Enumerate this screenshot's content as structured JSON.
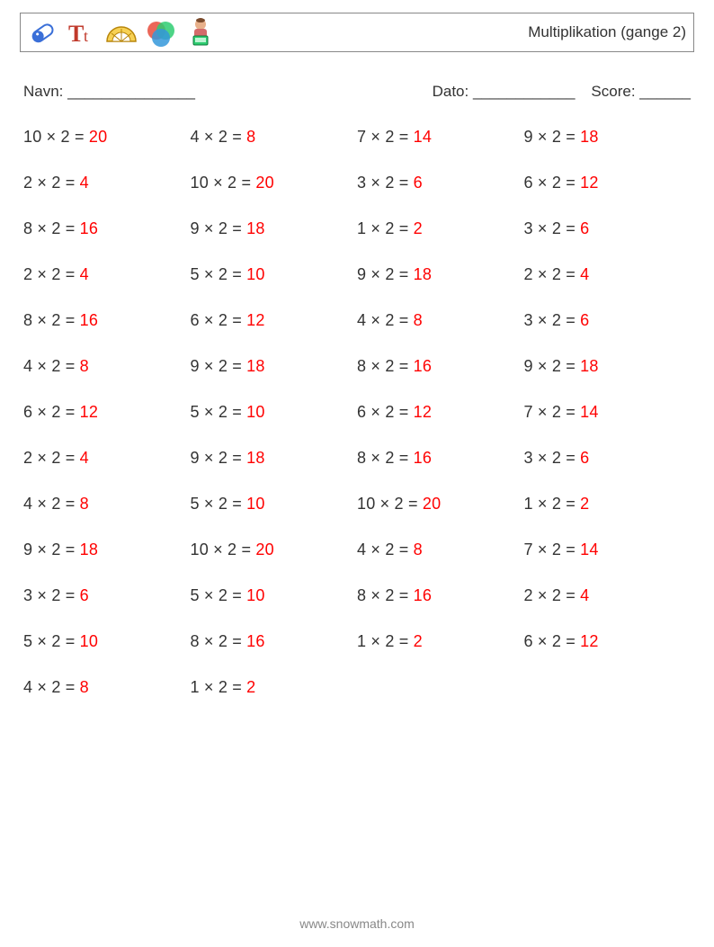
{
  "header": {
    "title": "Multiplikation (gange 2)",
    "icons": [
      "pill-icon",
      "text-tool-icon",
      "protractor-icon",
      "color-wheel-icon",
      "person-laptop-icon"
    ]
  },
  "meta": {
    "name_label": "Navn: _______________",
    "date_label": "Dato: ____________",
    "score_label": "Score: ______"
  },
  "styling": {
    "page_bg": "#ffffff",
    "text_color": "#333333",
    "answer_color": "#ff0000",
    "border_color": "#888888",
    "font_size_body": 18,
    "font_size_title": 17,
    "columns": 4,
    "rows": 13
  },
  "problems": [
    {
      "a": 10,
      "b": 2,
      "r": 20
    },
    {
      "a": 4,
      "b": 2,
      "r": 8
    },
    {
      "a": 7,
      "b": 2,
      "r": 14
    },
    {
      "a": 9,
      "b": 2,
      "r": 18
    },
    {
      "a": 2,
      "b": 2,
      "r": 4
    },
    {
      "a": 10,
      "b": 2,
      "r": 20
    },
    {
      "a": 3,
      "b": 2,
      "r": 6
    },
    {
      "a": 6,
      "b": 2,
      "r": 12
    },
    {
      "a": 8,
      "b": 2,
      "r": 16
    },
    {
      "a": 9,
      "b": 2,
      "r": 18
    },
    {
      "a": 1,
      "b": 2,
      "r": 2
    },
    {
      "a": 3,
      "b": 2,
      "r": 6
    },
    {
      "a": 2,
      "b": 2,
      "r": 4
    },
    {
      "a": 5,
      "b": 2,
      "r": 10
    },
    {
      "a": 9,
      "b": 2,
      "r": 18
    },
    {
      "a": 2,
      "b": 2,
      "r": 4
    },
    {
      "a": 8,
      "b": 2,
      "r": 16
    },
    {
      "a": 6,
      "b": 2,
      "r": 12
    },
    {
      "a": 4,
      "b": 2,
      "r": 8
    },
    {
      "a": 3,
      "b": 2,
      "r": 6
    },
    {
      "a": 4,
      "b": 2,
      "r": 8
    },
    {
      "a": 9,
      "b": 2,
      "r": 18
    },
    {
      "a": 8,
      "b": 2,
      "r": 16
    },
    {
      "a": 9,
      "b": 2,
      "r": 18
    },
    {
      "a": 6,
      "b": 2,
      "r": 12
    },
    {
      "a": 5,
      "b": 2,
      "r": 10
    },
    {
      "a": 6,
      "b": 2,
      "r": 12
    },
    {
      "a": 7,
      "b": 2,
      "r": 14
    },
    {
      "a": 2,
      "b": 2,
      "r": 4
    },
    {
      "a": 9,
      "b": 2,
      "r": 18
    },
    {
      "a": 8,
      "b": 2,
      "r": 16
    },
    {
      "a": 3,
      "b": 2,
      "r": 6
    },
    {
      "a": 4,
      "b": 2,
      "r": 8
    },
    {
      "a": 5,
      "b": 2,
      "r": 10
    },
    {
      "a": 10,
      "b": 2,
      "r": 20
    },
    {
      "a": 1,
      "b": 2,
      "r": 2
    },
    {
      "a": 9,
      "b": 2,
      "r": 18
    },
    {
      "a": 10,
      "b": 2,
      "r": 20
    },
    {
      "a": 4,
      "b": 2,
      "r": 8
    },
    {
      "a": 7,
      "b": 2,
      "r": 14
    },
    {
      "a": 3,
      "b": 2,
      "r": 6
    },
    {
      "a": 5,
      "b": 2,
      "r": 10
    },
    {
      "a": 8,
      "b": 2,
      "r": 16
    },
    {
      "a": 2,
      "b": 2,
      "r": 4
    },
    {
      "a": 5,
      "b": 2,
      "r": 10
    },
    {
      "a": 8,
      "b": 2,
      "r": 16
    },
    {
      "a": 1,
      "b": 2,
      "r": 2
    },
    {
      "a": 6,
      "b": 2,
      "r": 12
    },
    {
      "a": 4,
      "b": 2,
      "r": 8
    },
    {
      "a": 1,
      "b": 2,
      "r": 2
    }
  ],
  "footer": "www.snowmath.com"
}
